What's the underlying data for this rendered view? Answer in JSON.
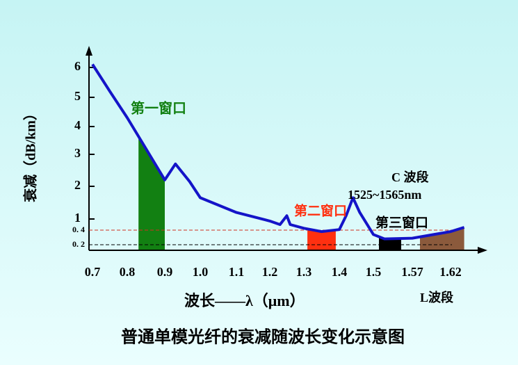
{
  "chart_data": {
    "type": "line",
    "title": "普通单模光纤的衰减随波长变化示意图",
    "x_label": "波长——λ（μm）",
    "y_label": "衰减（dB/km）",
    "x": [
      0.7,
      0.75,
      0.8,
      0.85,
      0.9,
      0.93,
      0.97,
      1.0,
      1.1,
      1.2,
      1.23,
      1.25,
      1.26,
      1.3,
      1.35,
      1.4,
      1.42,
      1.44,
      1.46,
      1.5,
      1.52,
      1.57,
      1.62,
      1.64
    ],
    "series": [
      {
        "color": "#1414c8",
        "values": [
          6.1,
          5.2,
          4.3,
          3.2,
          2.2,
          2.7,
          2.15,
          1.65,
          1.2,
          0.89,
          0.7,
          1.1,
          0.7,
          0.5,
          0.38,
          0.43,
          1.1,
          1.65,
          1.2,
          0.34,
          0.28,
          0.29,
          0.38,
          0.55
        ]
      }
    ],
    "xlim": [
      0.69,
      1.67
    ],
    "xticks": [
      0.7,
      0.8,
      0.9,
      {
        "value": 1.0,
        "label": "1.0"
      },
      1.1,
      1.2,
      1.3,
      1.4,
      1.5,
      1.57,
      1.62
    ],
    "ylim": [
      0.12,
      6.6
    ],
    "yticks": [
      {
        "value": 0.2,
        "label": "0. 2"
      },
      {
        "value": 0.4,
        "label": "0. 4"
      },
      1,
      2,
      3,
      4,
      5,
      6
    ],
    "ref_lines": [
      {
        "y": 0.4,
        "color": "#d03020"
      },
      {
        "y": 0.2,
        "color": "#000000"
      }
    ],
    "bands": [
      {
        "x": [
          0.83,
          0.9
        ],
        "color": "#128012"
      },
      {
        "x": [
          1.31,
          1.39
        ],
        "color": "#ff3010"
      },
      {
        "x": [
          1.51,
          1.55
        ],
        "color": "#000000"
      },
      {
        "x": [
          1.58,
          1.65
        ],
        "color": "#8b5a3c"
      }
    ],
    "annotations": [
      {
        "text": "第一窗口",
        "color": "#128012"
      },
      {
        "text": "第二窗口",
        "color": "#ff3010"
      },
      {
        "text": "第三窗口",
        "color": "#000000"
      },
      {
        "text": "C 波段",
        "color": "#000000"
      },
      {
        "text": "1525~1565nm",
        "color": "#000000"
      },
      {
        "text": "L波段",
        "color": "#000000"
      }
    ]
  }
}
